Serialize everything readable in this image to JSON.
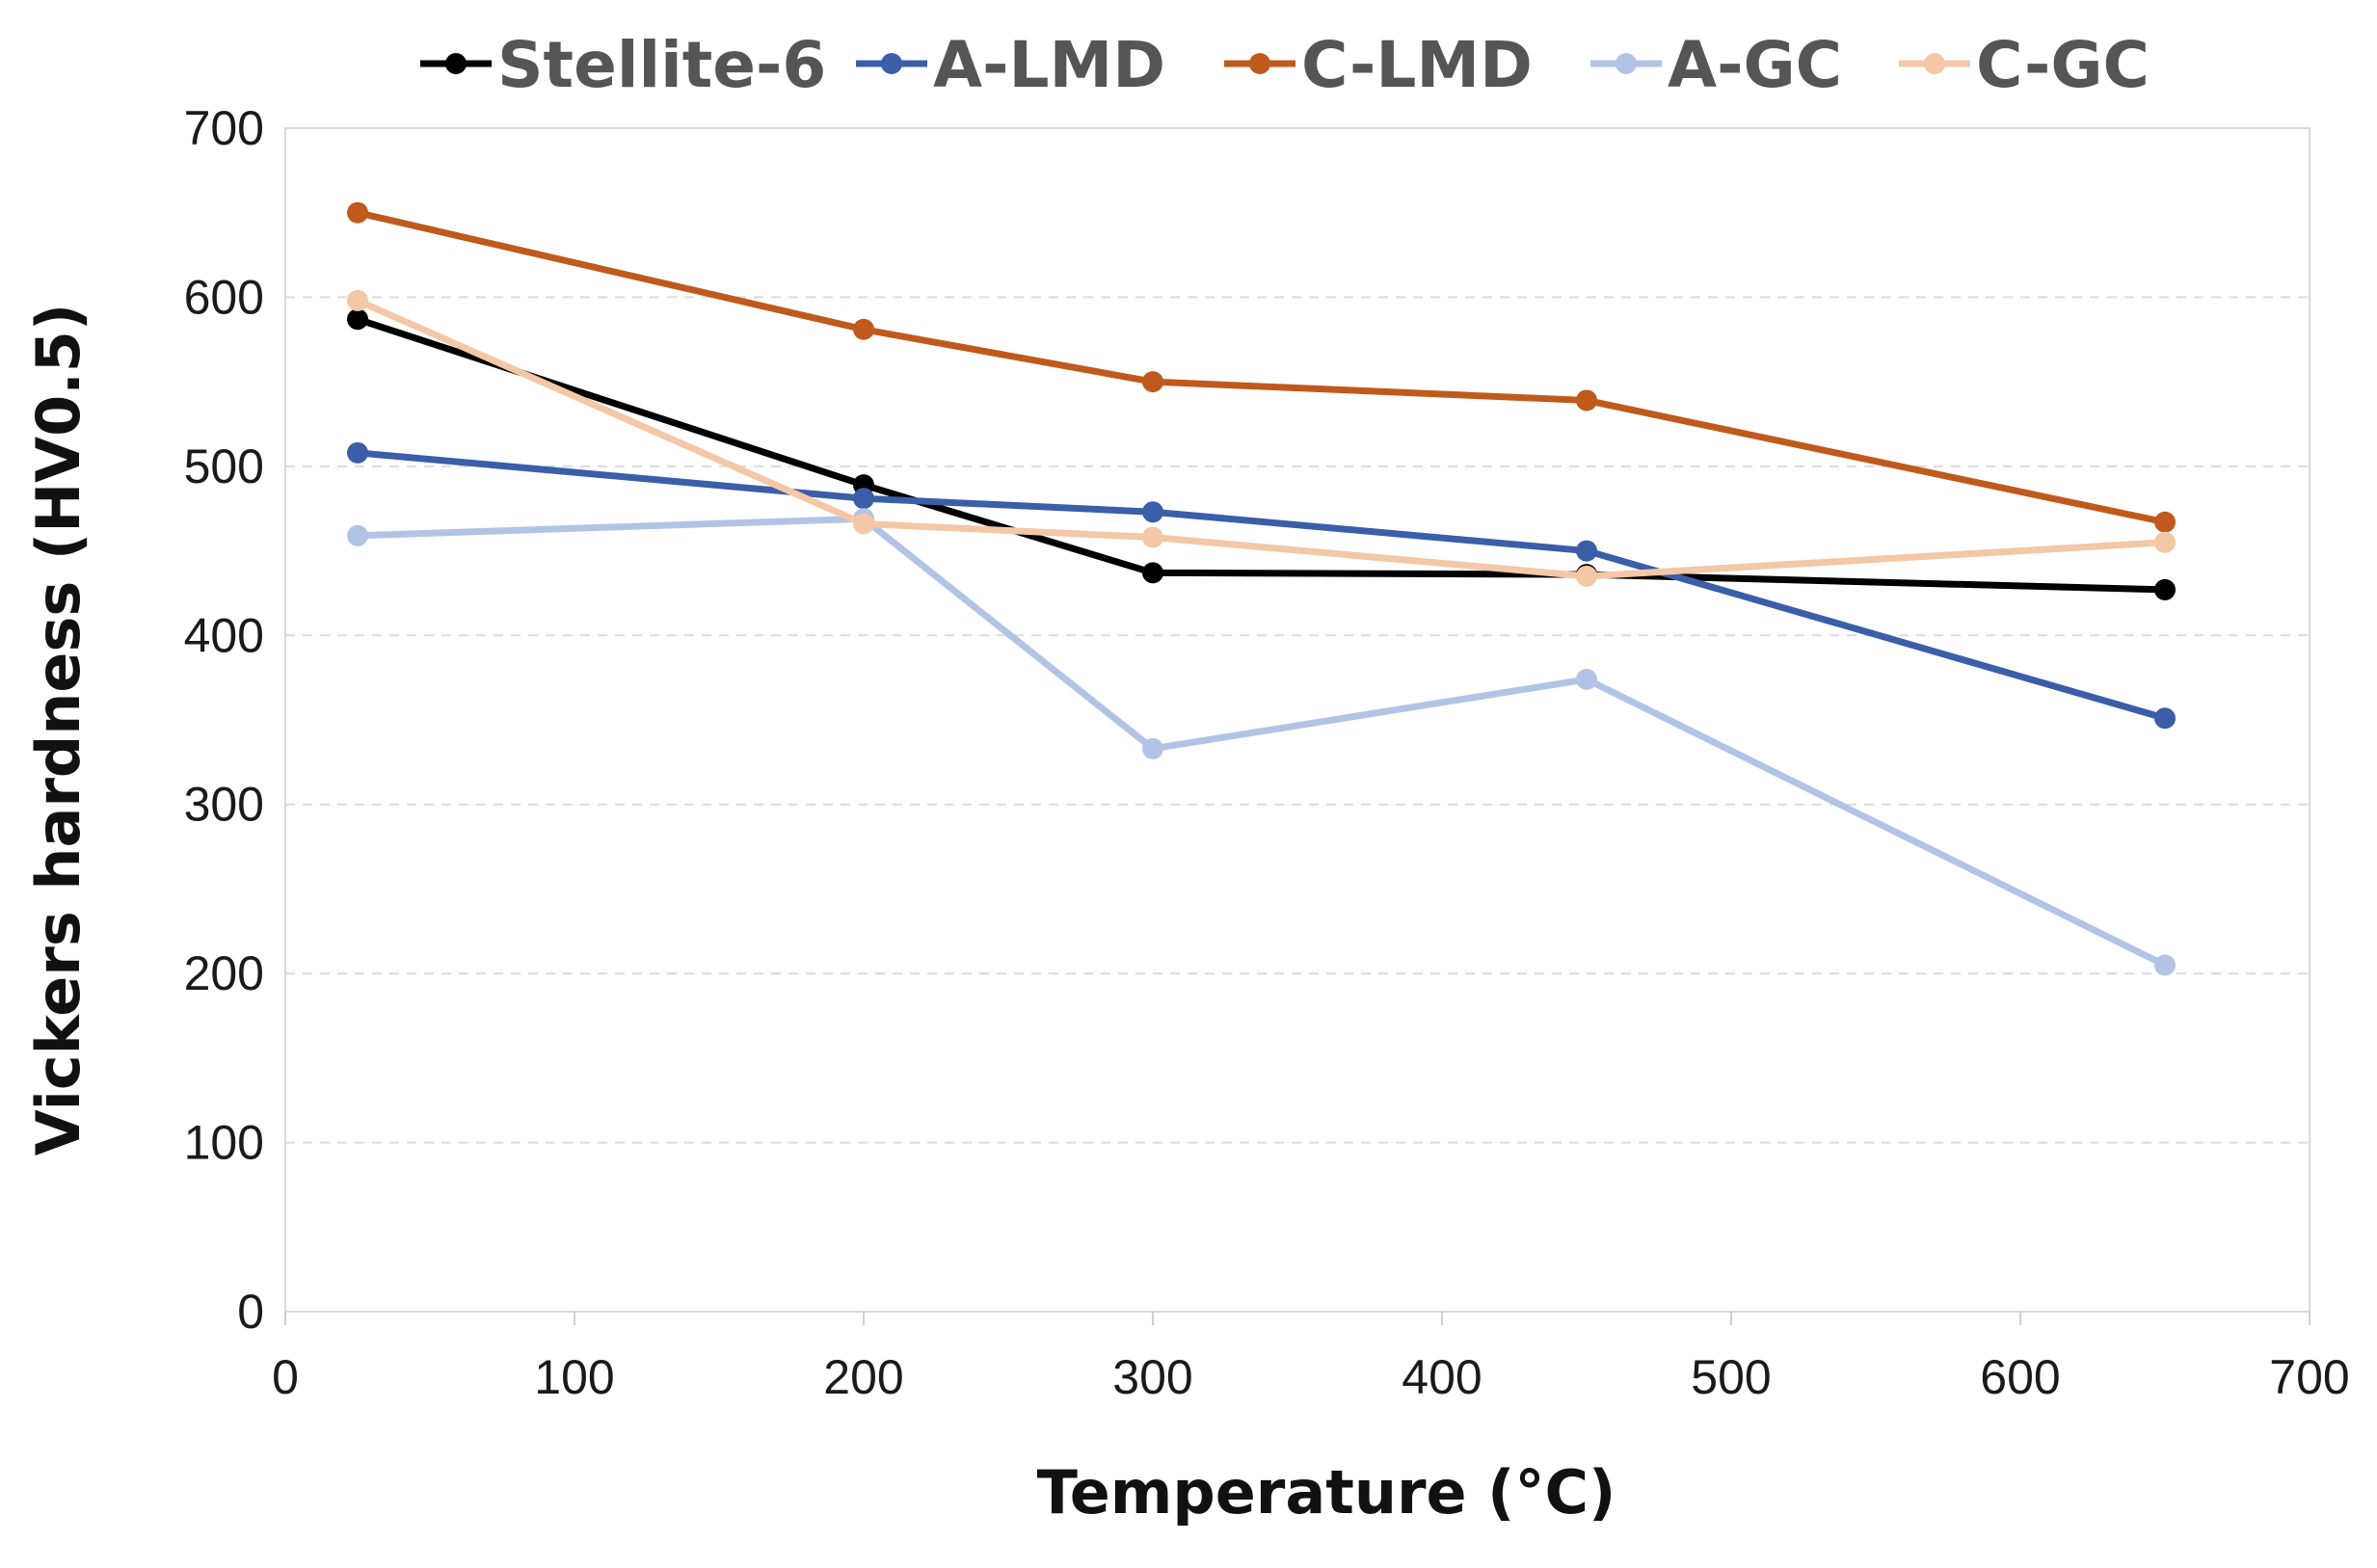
{
  "chart_data": {
    "type": "line",
    "title": "",
    "xlabel": "Temperature (°C)",
    "ylabel": "Vickers hardness (HV0.5)",
    "xlim": [
      0,
      700
    ],
    "ylim": [
      0,
      700
    ],
    "xticks": [
      0,
      100,
      200,
      300,
      400,
      500,
      600,
      700
    ],
    "yticks": [
      0,
      100,
      200,
      300,
      400,
      500,
      600,
      700
    ],
    "grid": "horizontal dashed",
    "legend": "top",
    "series": [
      {
        "name": "Stellite-6",
        "color": "#000000",
        "x": [
          25,
          200,
          300,
          450,
          650
        ],
        "values": [
          587,
          489,
          437,
          436,
          427
        ]
      },
      {
        "name": "A-LMD",
        "color": "#3a5ea8",
        "x": [
          25,
          200,
          300,
          450,
          650
        ],
        "values": [
          508,
          481,
          473,
          450,
          351
        ]
      },
      {
        "name": "C-LMD",
        "color": "#c05a1c",
        "x": [
          25,
          200,
          300,
          450,
          650
        ],
        "values": [
          650,
          581,
          550,
          539,
          467
        ]
      },
      {
        "name": "A-GC",
        "color": "#b2c4e6",
        "x": [
          25,
          200,
          300,
          450,
          650
        ],
        "values": [
          459,
          469,
          333,
          374,
          205
        ]
      },
      {
        "name": "C-GC",
        "color": "#f4c7a6",
        "x": [
          25,
          200,
          300,
          450,
          650
        ],
        "values": [
          598,
          466,
          458,
          435,
          455
        ]
      }
    ]
  }
}
